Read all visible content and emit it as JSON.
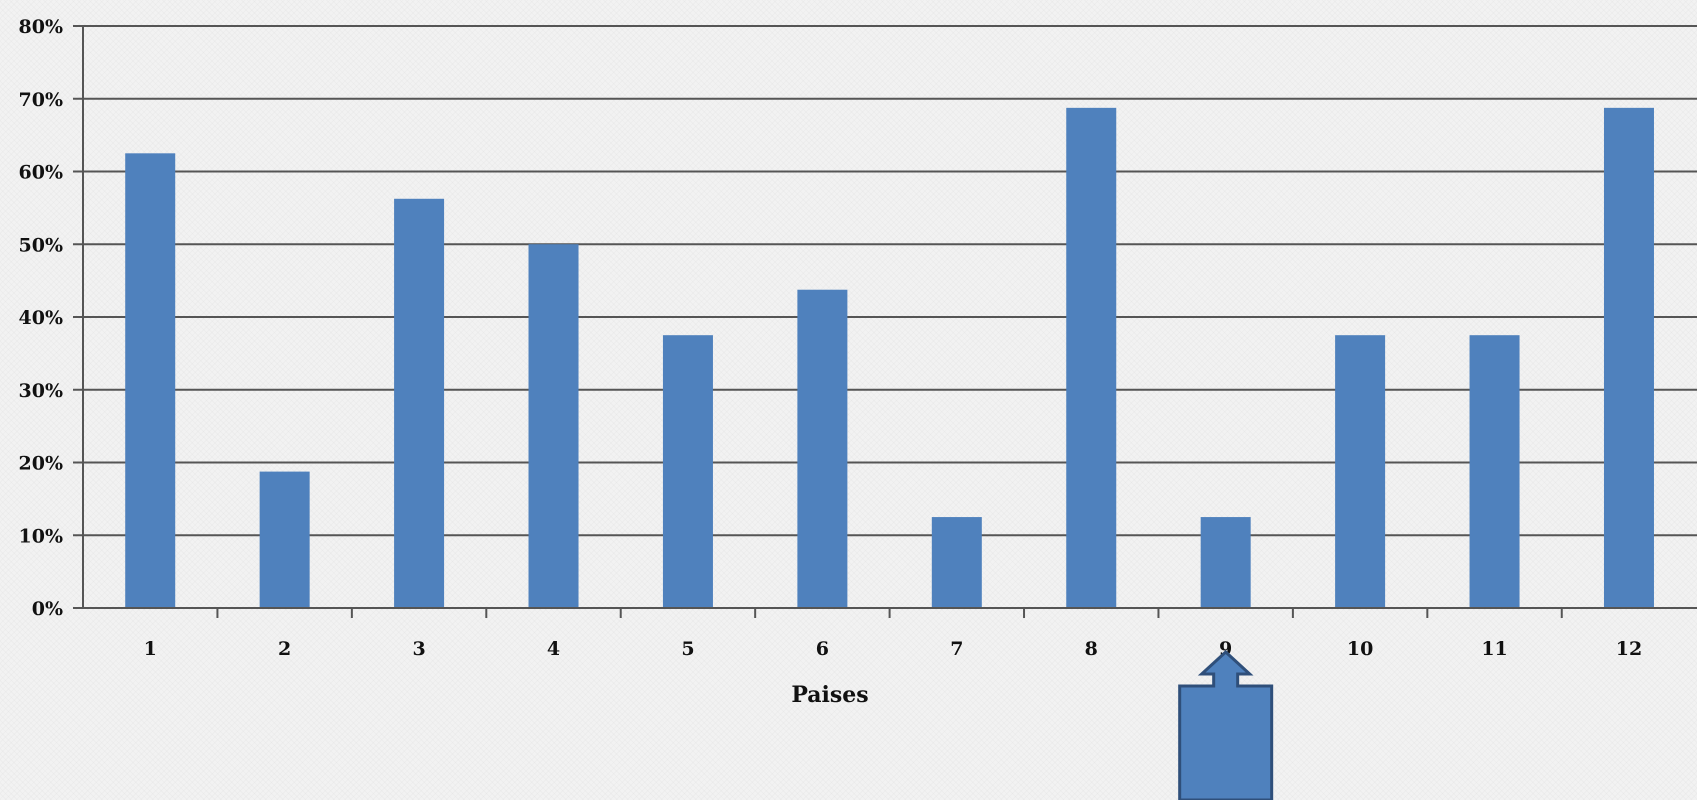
{
  "chart_data": {
    "type": "bar",
    "categories": [
      "1",
      "2",
      "3",
      "4",
      "5",
      "6",
      "7",
      "8",
      "9",
      "10",
      "11",
      "12"
    ],
    "values": [
      62.5,
      18.75,
      56.25,
      50,
      37.5,
      43.75,
      12.5,
      68.75,
      12.5,
      37.5,
      37.5,
      68.75
    ],
    "ylim": [
      0,
      80
    ],
    "yticks": [
      "0%",
      "10%",
      "20%",
      "30%",
      "40%",
      "50%",
      "60%",
      "70%",
      "80%"
    ],
    "xlabel": "Paises",
    "ylabel": "",
    "title": "",
    "grid": true,
    "legend": "none",
    "bar_color": "#4f81bd",
    "gridline_color": "#555555"
  },
  "annotation": {
    "shape": "up-arrow-callout",
    "points_to_category": "9",
    "fill": "#4f81bd",
    "stroke": "#2f4f7a"
  }
}
